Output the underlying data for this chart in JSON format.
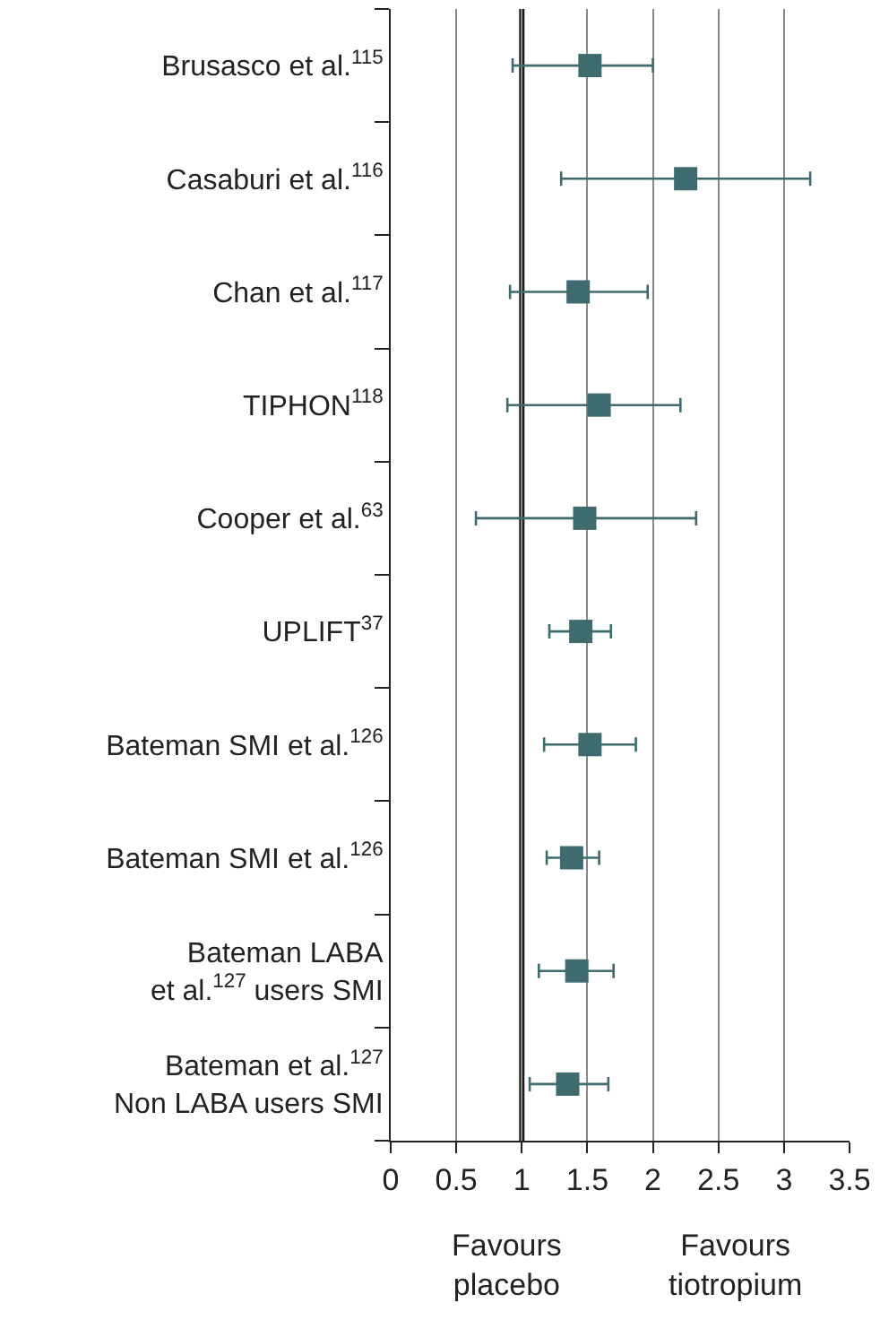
{
  "chart_data": {
    "type": "scatter",
    "orientation": "horizontal",
    "categories": [
      "Brusasco et al.$^{115}$",
      "Casaburi et al.$^{116}$",
      "Chan et al.$^{117}$",
      "TIPHON$^{118}$",
      "Cooper et al.$^{63}$",
      "UPLIFT$^{37}$",
      "Bateman SMI et al.$^{126}$",
      "Bateman SMI et al.$^{126}$",
      "Bateman LABA\net al.$^{127}$ users SMI",
      "Bateman et al.$^{127}$\nNon LABA users SMI"
    ],
    "values": [
      1.52,
      2.25,
      1.43,
      1.59,
      1.48,
      1.45,
      1.52,
      1.38,
      1.42,
      1.35
    ],
    "errors": [
      [
        0.93,
        2.0
      ],
      [
        1.3,
        3.2
      ],
      [
        0.91,
        1.96
      ],
      [
        0.89,
        2.21
      ],
      [
        0.65,
        2.33
      ],
      [
        1.21,
        1.68
      ],
      [
        1.17,
        1.87
      ],
      [
        1.19,
        1.59
      ],
      [
        1.13,
        1.7
      ],
      [
        1.06,
        1.66
      ]
    ],
    "color": "#3d6b6e",
    "marker": "square",
    "xlim": [
      0,
      3.5
    ],
    "xticks": [
      0,
      0.5,
      1,
      1.5,
      2,
      2.5,
      3,
      3.5
    ],
    "grid": "x",
    "legend": false,
    "ref_lines": [
      {
        "axis": "x",
        "value": 1,
        "color": "#1a1a1a"
      }
    ],
    "annotations": [
      "Favours\nplacebo",
      "Favours\ntiotropium"
    ]
  }
}
